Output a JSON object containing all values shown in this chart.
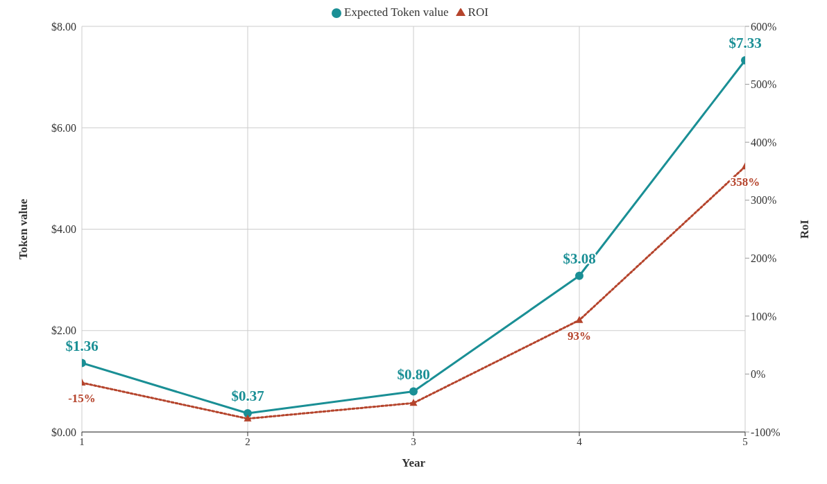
{
  "chart_data": {
    "type": "line",
    "xlabel": "Year",
    "ylabel": "Token value",
    "y2label": "RoI",
    "x": [
      1,
      2,
      3,
      4,
      5
    ],
    "xlim": [
      1,
      5
    ],
    "xticks": [
      1,
      2,
      3,
      4,
      5
    ],
    "ylim": [
      0,
      8
    ],
    "yticks": [
      {
        "value": 0,
        "label": "$0.00"
      },
      {
        "value": 2,
        "label": "$2.00"
      },
      {
        "value": 4,
        "label": "$4.00"
      },
      {
        "value": 6,
        "label": "$6.00"
      },
      {
        "value": 8,
        "label": "$8.00"
      }
    ],
    "y2lim": [
      -100,
      600
    ],
    "y2ticks": [
      {
        "value": -100,
        "label": "-100%"
      },
      {
        "value": 0,
        "label": "0%"
      },
      {
        "value": 100,
        "label": "100%"
      },
      {
        "value": 200,
        "label": "200%"
      },
      {
        "value": 300,
        "label": "300%"
      },
      {
        "value": 400,
        "label": "400%"
      },
      {
        "value": 500,
        "label": "500%"
      },
      {
        "value": 600,
        "label": "600%"
      }
    ],
    "grid": true,
    "legend": "top",
    "series": [
      {
        "name": "Expected Token value",
        "color": "#1a8f95",
        "values": [
          1.36,
          0.37,
          0.8,
          3.08,
          7.33
        ],
        "marker": "circle",
        "line_style": "solid",
        "value_labels": [
          "$1.36",
          "$0.37",
          "$0.80",
          "$3.08",
          "$7.33"
        ]
      },
      {
        "name": "ROI",
        "color": "#b5442c",
        "values": [
          -15,
          -77,
          -50,
          93,
          358
        ],
        "axis": "y2",
        "marker": "triangle",
        "line_style": "dotted",
        "value_labels": [
          "-15%",
          null,
          null,
          "93%",
          "358%"
        ]
      }
    ]
  }
}
